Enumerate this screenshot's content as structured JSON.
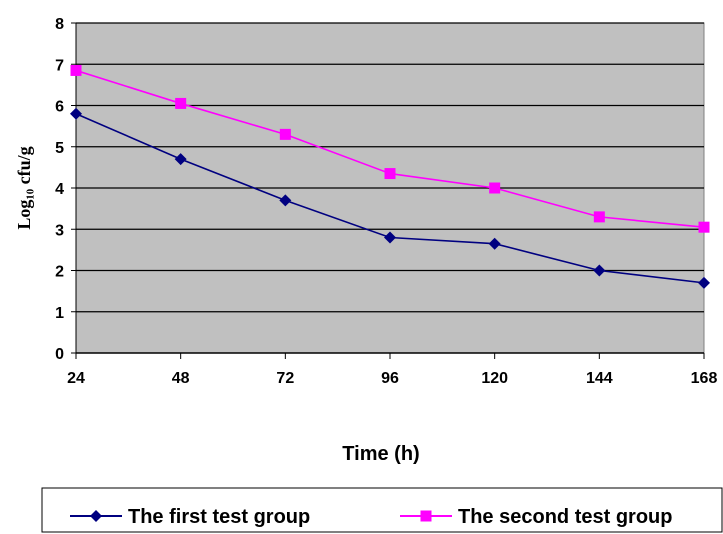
{
  "chart_data": {
    "type": "line",
    "title": "",
    "xlabel": "Time (h)",
    "ylabel": "Log₁₀ cfu/g",
    "x": [
      24,
      48,
      72,
      96,
      120,
      144,
      168
    ],
    "xticks": [
      "24",
      "48",
      "72",
      "96",
      "120",
      "144",
      "168"
    ],
    "yticks": [
      "0",
      "1",
      "2",
      "3",
      "4",
      "5",
      "6",
      "7",
      "8"
    ],
    "ylim": [
      0,
      8
    ],
    "grid": true,
    "legend": "bottom",
    "plot_background": "#c0c0c0",
    "series": [
      {
        "name": "The first test group",
        "values": [
          5.8,
          4.7,
          3.7,
          2.8,
          2.65,
          2.0,
          1.7
        ],
        "color": "#000080",
        "marker": "diamond"
      },
      {
        "name": "The second test group",
        "values": [
          6.85,
          6.05,
          5.3,
          4.35,
          4.0,
          3.3,
          3.05
        ],
        "color": "#ff00ff",
        "marker": "square"
      }
    ]
  }
}
